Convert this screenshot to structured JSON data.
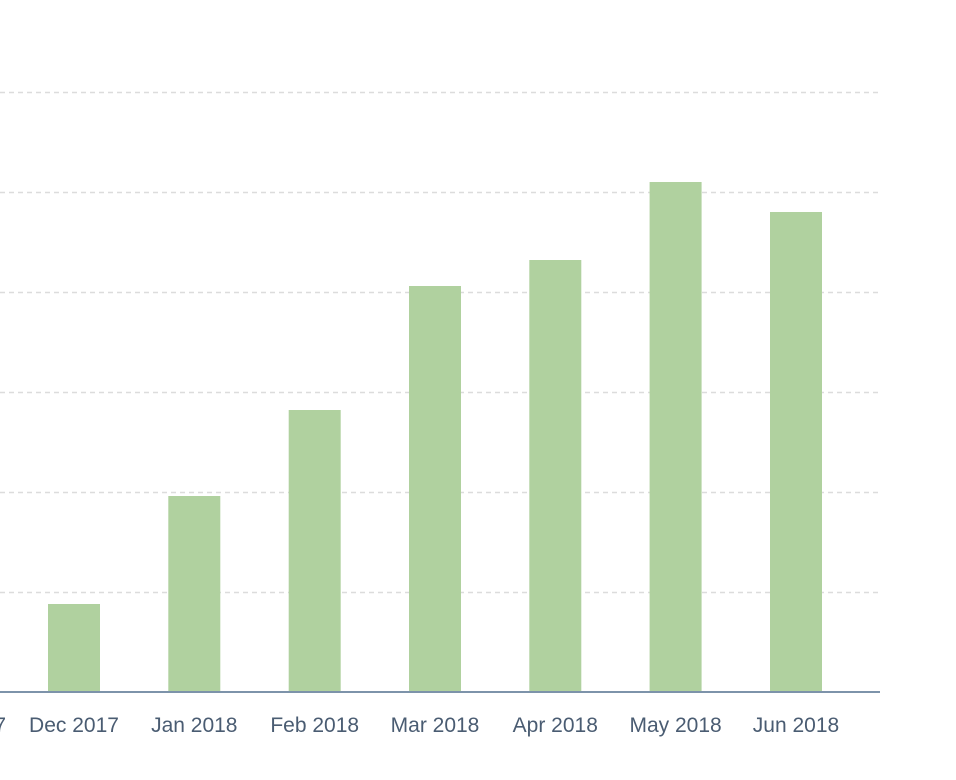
{
  "chart_data": {
    "type": "bar",
    "title": "",
    "xlabel": "",
    "ylabel": "",
    "categories": [
      "Dec 2017",
      "Jan 2018",
      "Feb 2018",
      "Mar 2018",
      "Apr 2018",
      "May 2018",
      "Jun 2018"
    ],
    "partial_left_label": "7",
    "values": [
      88,
      196,
      282,
      406,
      432,
      510,
      480
    ],
    "ylim": [
      0,
      600
    ],
    "ygrid": [
      100,
      200,
      300,
      400,
      500,
      600
    ],
    "grid": true,
    "legend": "none",
    "bar_color": "#b0d19f",
    "baseline_color": "#7d93aa",
    "grid_color": "#dcdcdc",
    "label_color": "#4a5c72"
  }
}
